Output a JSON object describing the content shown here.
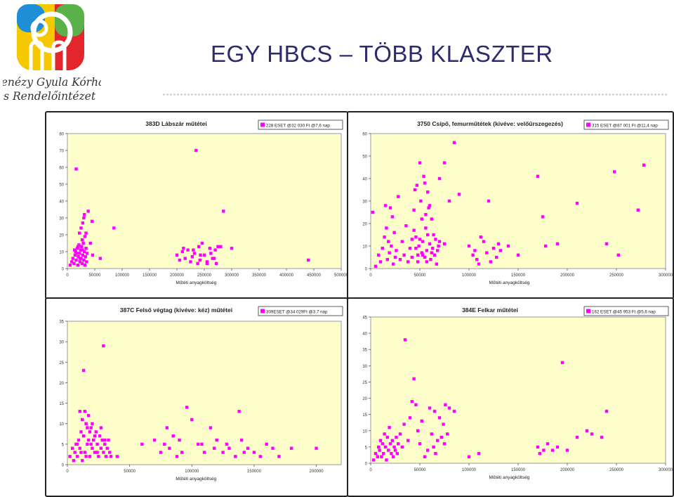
{
  "header": {
    "title": "EGY HBCS – TÖBB KLASZTER",
    "logo_line1": "Kenézy Gyula Kórház",
    "logo_line2": "és Rendelőintézet"
  },
  "colors": {
    "marker": "#ff00ff",
    "plot_bg": "#ffffcc",
    "title_text": "#2b2b6e",
    "logo_yellow": "#f6c800",
    "logo_red": "#e3262b",
    "logo_blue": "#1e8fd6",
    "logo_green": "#5ab14a",
    "divider_dots": "#cccccc"
  },
  "chart_data": [
    {
      "type": "scatter",
      "title": "383D Lábszár műtétei",
      "legend": "228 ESET @32 030 Ft @7,6 nap",
      "legend_position": "top-right",
      "xlabel": "Műtéti anyagköltség",
      "ylabel": "",
      "xlim": [
        0,
        500000
      ],
      "ylim": [
        0,
        80
      ],
      "xticks": [
        0,
        50000,
        100000,
        150000,
        200000,
        250000,
        300000,
        350000,
        400000,
        450000,
        500000
      ],
      "yticks": [
        0,
        10,
        20,
        30,
        40,
        50,
        60,
        70,
        80
      ],
      "grid": false,
      "points": [
        [
          5000,
          2
        ],
        [
          8000,
          4
        ],
        [
          10000,
          6
        ],
        [
          12000,
          3
        ],
        [
          14000,
          8
        ],
        [
          15000,
          10
        ],
        [
          16000,
          5
        ],
        [
          18000,
          12
        ],
        [
          19000,
          2
        ],
        [
          20000,
          7
        ],
        [
          21000,
          14
        ],
        [
          22000,
          9
        ],
        [
          23000,
          4
        ],
        [
          24000,
          11
        ],
        [
          25000,
          6
        ],
        [
          26000,
          13
        ],
        [
          27000,
          3
        ],
        [
          28000,
          8
        ],
        [
          29000,
          15
        ],
        [
          30000,
          5
        ],
        [
          31000,
          10
        ],
        [
          32000,
          2
        ],
        [
          33000,
          7
        ],
        [
          34000,
          12
        ],
        [
          35000,
          4
        ],
        [
          13000,
          11
        ],
        [
          17000,
          9
        ],
        [
          19500,
          13
        ],
        [
          23500,
          6
        ],
        [
          27500,
          11
        ],
        [
          16000,
          59
        ],
        [
          22000,
          21
        ],
        [
          25000,
          24
        ],
        [
          28000,
          27
        ],
        [
          30000,
          30
        ],
        [
          31000,
          32
        ],
        [
          34000,
          21
        ],
        [
          38000,
          34
        ],
        [
          32000,
          19
        ],
        [
          42000,
          15
        ],
        [
          45000,
          28
        ],
        [
          46000,
          8
        ],
        [
          60000,
          6
        ],
        [
          85000,
          24
        ],
        [
          27000,
          17
        ],
        [
          36000,
          9
        ],
        [
          200000,
          8
        ],
        [
          205000,
          5
        ],
        [
          210000,
          10
        ],
        [
          212000,
          12
        ],
        [
          215000,
          6
        ],
        [
          220000,
          11
        ],
        [
          225000,
          4
        ],
        [
          228000,
          7
        ],
        [
          230000,
          11
        ],
        [
          232000,
          9
        ],
        [
          235000,
          70
        ],
        [
          238000,
          3
        ],
        [
          240000,
          13
        ],
        [
          242000,
          5
        ],
        [
          246000,
          15
        ],
        [
          250000,
          8
        ],
        [
          255000,
          4
        ],
        [
          260000,
          12
        ],
        [
          262000,
          9
        ],
        [
          265000,
          6
        ],
        [
          270000,
          11
        ],
        [
          272000,
          3
        ],
        [
          275000,
          13
        ],
        [
          280000,
          13
        ],
        [
          285000,
          34
        ],
        [
          300000,
          12
        ],
        [
          255000,
          3
        ],
        [
          268000,
          6
        ],
        [
          243000,
          8
        ],
        [
          440000,
          5
        ]
      ]
    },
    {
      "type": "scatter",
      "title": "3750 Csípő, femurműtétek (kivéve: velőűrszegezés)",
      "legend": "315 ESET @87 001 Ft @11,4 nap",
      "legend_position": "top-right",
      "xlabel": "Műtéti anyagköltség",
      "ylabel": "",
      "xlim": [
        0,
        300000
      ],
      "ylim": [
        0,
        60
      ],
      "xticks": [
        0,
        50000,
        100000,
        150000,
        200000,
        250000,
        300000
      ],
      "yticks": [
        0,
        10,
        20,
        30,
        40,
        50,
        60
      ],
      "grid": false,
      "points": [
        [
          2000,
          25
        ],
        [
          5000,
          1
        ],
        [
          8000,
          6
        ],
        [
          10000,
          3
        ],
        [
          12000,
          9
        ],
        [
          14000,
          14
        ],
        [
          15000,
          28
        ],
        [
          16000,
          18
        ],
        [
          17000,
          4
        ],
        [
          18000,
          12
        ],
        [
          19000,
          7
        ],
        [
          20000,
          27
        ],
        [
          21000,
          10
        ],
        [
          22000,
          23
        ],
        [
          23000,
          2
        ],
        [
          24000,
          16
        ],
        [
          25000,
          5
        ],
        [
          26000,
          8
        ],
        [
          28000,
          32
        ],
        [
          30000,
          4
        ],
        [
          32000,
          12
        ],
        [
          34000,
          6
        ],
        [
          36000,
          19
        ],
        [
          38000,
          3
        ],
        [
          40000,
          9
        ],
        [
          42000,
          5
        ],
        [
          44000,
          26
        ],
        [
          45000,
          35
        ],
        [
          46000,
          14
        ],
        [
          47000,
          37
        ],
        [
          48000,
          3
        ],
        [
          49000,
          10
        ],
        [
          50000,
          47
        ],
        [
          51000,
          30
        ],
        [
          52000,
          7
        ],
        [
          53000,
          12
        ],
        [
          54000,
          41
        ],
        [
          55000,
          5
        ],
        [
          56000,
          18
        ],
        [
          57000,
          8
        ],
        [
          58000,
          34
        ],
        [
          59000,
          27
        ],
        [
          60000,
          11
        ],
        [
          61000,
          4
        ],
        [
          62000,
          22
        ],
        [
          63000,
          9
        ],
        [
          64000,
          15
        ],
        [
          65000,
          6
        ],
        [
          66000,
          13
        ],
        [
          67000,
          2
        ],
        [
          68000,
          8
        ],
        [
          69000,
          10
        ],
        [
          70000,
          12
        ],
        [
          48000,
          6
        ],
        [
          52000,
          22
        ],
        [
          55000,
          38
        ],
        [
          60000,
          28
        ],
        [
          44000,
          17
        ],
        [
          58000,
          15
        ],
        [
          50000,
          13
        ],
        [
          53000,
          6
        ],
        [
          57000,
          3
        ],
        [
          46000,
          9
        ],
        [
          62000,
          7
        ],
        [
          42000,
          13
        ],
        [
          56000,
          24
        ],
        [
          70000,
          40
        ],
        [
          75000,
          47
        ],
        [
          80000,
          30
        ],
        [
          85000,
          56
        ],
        [
          75000,
          11
        ],
        [
          90000,
          33
        ],
        [
          100000,
          10
        ],
        [
          104000,
          6
        ],
        [
          106000,
          8
        ],
        [
          108000,
          4
        ],
        [
          110000,
          2
        ],
        [
          112000,
          14
        ],
        [
          115000,
          12
        ],
        [
          118000,
          7
        ],
        [
          120000,
          30
        ],
        [
          122000,
          3
        ],
        [
          125000,
          9
        ],
        [
          128000,
          5
        ],
        [
          130000,
          11
        ],
        [
          132000,
          8
        ],
        [
          140000,
          10
        ],
        [
          150000,
          6
        ],
        [
          170000,
          41
        ],
        [
          175000,
          23
        ],
        [
          178000,
          10
        ],
        [
          190000,
          11
        ],
        [
          210000,
          29
        ],
        [
          240000,
          11
        ],
        [
          248000,
          43
        ],
        [
          252000,
          6
        ],
        [
          272000,
          26
        ],
        [
          278000,
          46
        ]
      ]
    },
    {
      "type": "scatter",
      "title": "387C Felső végtag (kivéve: kéz) műtétei",
      "legend": "309ESET @34 029Ft @3,7 nap",
      "legend_position": "top-right",
      "xlabel": "Műtéti anyagköltség",
      "ylabel": "",
      "xlim": [
        0,
        220000
      ],
      "ylim": [
        0,
        35
      ],
      "xticks": [
        0,
        50000,
        100000,
        150000,
        200000
      ],
      "yticks": [
        0,
        5,
        10,
        15,
        20,
        25,
        30,
        35
      ],
      "grid": false,
      "points": [
        [
          2000,
          2
        ],
        [
          4000,
          4
        ],
        [
          5000,
          1
        ],
        [
          6000,
          3
        ],
        [
          7000,
          5
        ],
        [
          8000,
          2
        ],
        [
          9000,
          6
        ],
        [
          10000,
          4
        ],
        [
          11000,
          8
        ],
        [
          12000,
          1
        ],
        [
          13000,
          7
        ],
        [
          14000,
          3
        ],
        [
          15000,
          10
        ],
        [
          16000,
          5
        ],
        [
          17000,
          12
        ],
        [
          18000,
          2
        ],
        [
          19000,
          9
        ],
        [
          20000,
          4
        ],
        [
          21000,
          6
        ],
        [
          22000,
          3
        ],
        [
          23000,
          8
        ],
        [
          24000,
          5
        ],
        [
          25000,
          2
        ],
        [
          26000,
          7
        ],
        [
          27000,
          4
        ],
        [
          28000,
          6
        ],
        [
          29000,
          3
        ],
        [
          30000,
          5
        ],
        [
          31000,
          2
        ],
        [
          32000,
          4
        ],
        [
          33000,
          6
        ],
        [
          34000,
          3
        ],
        [
          35000,
          2
        ],
        [
          12000,
          11
        ],
        [
          14000,
          13
        ],
        [
          16000,
          9
        ],
        [
          18000,
          8
        ],
        [
          20000,
          10
        ],
        [
          10000,
          13
        ],
        [
          13000,
          23
        ],
        [
          29000,
          29
        ],
        [
          17000,
          6
        ],
        [
          11000,
          3
        ],
        [
          15000,
          2
        ],
        [
          19000,
          5
        ],
        [
          24000,
          3
        ],
        [
          8000,
          5
        ],
        [
          22000,
          7
        ],
        [
          27000,
          9
        ],
        [
          30000,
          6
        ],
        [
          40000,
          2
        ],
        [
          60000,
          5
        ],
        [
          70000,
          6
        ],
        [
          75000,
          3
        ],
        [
          78000,
          5
        ],
        [
          80000,
          9
        ],
        [
          82000,
          4
        ],
        [
          85000,
          7
        ],
        [
          88000,
          2
        ],
        [
          90000,
          6
        ],
        [
          92000,
          3
        ],
        [
          96000,
          14
        ],
        [
          100000,
          11
        ],
        [
          105000,
          5
        ],
        [
          110000,
          3
        ],
        [
          115000,
          9
        ],
        [
          118000,
          4
        ],
        [
          120000,
          6
        ],
        [
          125000,
          3
        ],
        [
          128000,
          5
        ],
        [
          130000,
          4
        ],
        [
          135000,
          2
        ],
        [
          138000,
          13
        ],
        [
          140000,
          6
        ],
        [
          145000,
          4
        ],
        [
          150000,
          3
        ],
        [
          155000,
          2
        ],
        [
          160000,
          5
        ],
        [
          165000,
          4
        ],
        [
          170000,
          2
        ],
        [
          180000,
          4
        ],
        [
          200000,
          4
        ],
        [
          230000,
          4
        ],
        [
          108000,
          5
        ],
        [
          142000,
          3
        ]
      ]
    },
    {
      "type": "scatter",
      "title": "384E Felkar műtétei",
      "legend": "162 ESET @45 953 Ft @5,6 nap",
      "legend_position": "top-right",
      "xlabel": "Műtéti anyagköltség",
      "ylabel": "",
      "xlim": [
        0,
        300000
      ],
      "ylim": [
        0,
        45
      ],
      "xticks": [
        0,
        50000,
        100000,
        150000,
        200000,
        250000,
        300000
      ],
      "yticks": [
        0,
        5,
        10,
        15,
        20,
        25,
        30,
        35,
        40,
        45
      ],
      "grid": false,
      "points": [
        [
          3000,
          1
        ],
        [
          5000,
          3
        ],
        [
          7000,
          2
        ],
        [
          8000,
          5
        ],
        [
          9000,
          4
        ],
        [
          10000,
          7
        ],
        [
          11000,
          2
        ],
        [
          12000,
          6
        ],
        [
          13000,
          3
        ],
        [
          14000,
          9
        ],
        [
          15000,
          5
        ],
        [
          16000,
          1
        ],
        [
          17000,
          8
        ],
        [
          18000,
          4
        ],
        [
          19000,
          11
        ],
        [
          20000,
          6
        ],
        [
          21000,
          3
        ],
        [
          22000,
          7
        ],
        [
          23000,
          2
        ],
        [
          24000,
          5
        ],
        [
          25000,
          4
        ],
        [
          26000,
          8
        ],
        [
          27000,
          3
        ],
        [
          28000,
          6
        ],
        [
          30000,
          9
        ],
        [
          32000,
          5
        ],
        [
          34000,
          12
        ],
        [
          35000,
          38
        ],
        [
          38000,
          7
        ],
        [
          40000,
          14
        ],
        [
          42000,
          19
        ],
        [
          44000,
          26
        ],
        [
          46000,
          18
        ],
        [
          48000,
          10
        ],
        [
          50000,
          6
        ],
        [
          52000,
          13
        ],
        [
          55000,
          2
        ],
        [
          58000,
          4
        ],
        [
          60000,
          17
        ],
        [
          62000,
          9
        ],
        [
          64000,
          5
        ],
        [
          65000,
          16
        ],
        [
          66000,
          3
        ],
        [
          68000,
          7
        ],
        [
          70000,
          14
        ],
        [
          72000,
          8
        ],
        [
          74000,
          12
        ],
        [
          75000,
          6
        ],
        [
          76000,
          18
        ],
        [
          78000,
          9
        ],
        [
          80000,
          17
        ],
        [
          85000,
          16
        ],
        [
          100000,
          2
        ],
        [
          110000,
          3
        ],
        [
          170000,
          5
        ],
        [
          172000,
          3
        ],
        [
          176000,
          4
        ],
        [
          180000,
          6
        ],
        [
          185000,
          4
        ],
        [
          190000,
          5
        ],
        [
          195000,
          31
        ],
        [
          200000,
          4
        ],
        [
          210000,
          8
        ],
        [
          220000,
          10
        ],
        [
          225000,
          9
        ],
        [
          235000,
          8
        ],
        [
          240000,
          16
        ]
      ]
    }
  ]
}
